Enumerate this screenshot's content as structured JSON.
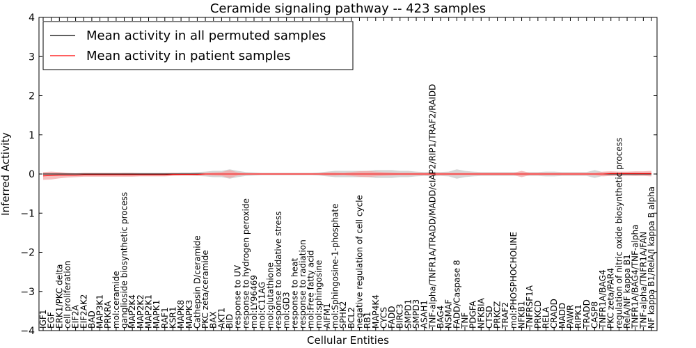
{
  "chart_data": {
    "type": "line",
    "title": "Ceramide signaling pathway -- 423 samples",
    "xlabel": "Cellular Entities",
    "ylabel": "Inferred Activity",
    "ylim": [
      -4,
      4
    ],
    "yticks": [
      -4,
      -3,
      -2,
      -1,
      0,
      1,
      2,
      3,
      4
    ],
    "grid": false,
    "legend_position": "top-left",
    "categories": [
      "IGF1",
      "EGF",
      "ERK1/PKC delta",
      "cell proliferation",
      "EIF2A",
      "EIF2AK2",
      "BAD",
      "MAP3K1",
      "PRKRA",
      "mol:ceramide",
      "ganglioside biosynthetic process",
      "MAP2K4",
      "MAP2K2",
      "MAP2K1",
      "MAPK1",
      "RAF1",
      "KSR1",
      "MAPK8",
      "MAPK3",
      "Cathepsin D/ceramide",
      "PKC zeta/ceramide",
      "BAX",
      "AKT1",
      "BID",
      "response to UV",
      "response to hydrogen peroxide",
      "mol:LY96469",
      "mol:C11AG",
      "mol:glutathione",
      "response to oxidative stress",
      "mol:GD3",
      "response to heat",
      "response to radiation",
      "mol:Free fatty acid",
      "mol:sphingosine",
      "AIFM1",
      "mol:Sphingosine-1-phosphate",
      "SPHK2",
      "BCL2",
      "negative regulation of cell cycle",
      "RB1",
      "MAP4K4",
      "CYCS",
      "FADD",
      "BIRC3",
      "SMPD1",
      "SMPD3",
      "ASAH1",
      "TNF-alpha/TNFR1A/TRADD/MADD/cIAP2/RIP1/TRAF2/RAIDD",
      "BAG4",
      "NSMAF",
      "FADD/Caspase 8",
      "TNF",
      "PDGFA",
      "NFKBIA",
      "CTSD",
      "PRKCZ",
      "TRAF2",
      "mol:PHOSPHOCHOLINE",
      "NFKB1",
      "TNFRSF1A",
      "PRKCD",
      "RELA",
      "CRADD",
      "MADD",
      "PAWR",
      "RIPK1",
      "TRADD",
      "CASP8",
      "TNFR1A/BAG4",
      "PKC zeta/PAR4",
      "regulation of nitric oxide biosynthetic process",
      "RelA/NF kappa B1",
      "TNFR1A/BAG4/TNF-alpha",
      "TNF-alpha/TNFR1A/FAN",
      "NF kappa B1/RelA/I kappa B alpha"
    ],
    "series": [
      {
        "name": "Mean activity in all permuted samples",
        "color": "#000000",
        "band_color": "#c8c8c8",
        "values": [
          0,
          0,
          0,
          0,
          0,
          0,
          0,
          0,
          0,
          0,
          0,
          0,
          0,
          0,
          0,
          0,
          0,
          0,
          0,
          0,
          0,
          0,
          0,
          0,
          0,
          0,
          0,
          0,
          0,
          0,
          0,
          0,
          0,
          0,
          0,
          0,
          0,
          0,
          0,
          0,
          0,
          0,
          0,
          0,
          0,
          0,
          0,
          0,
          0,
          0,
          0,
          0,
          0,
          0,
          0,
          0,
          0,
          0,
          0,
          0,
          0,
          0,
          0,
          0,
          0,
          0,
          0,
          0,
          0,
          0,
          0,
          0,
          0,
          0,
          0,
          0
        ],
        "band": [
          0.02,
          0.02,
          0.02,
          0.02,
          0.02,
          0.02,
          0.02,
          0.02,
          0.02,
          0.02,
          0.03,
          0.03,
          0.03,
          0.03,
          0.03,
          0.03,
          0.03,
          0.04,
          0.04,
          0.05,
          0.06,
          0.08,
          0.08,
          0.12,
          0.08,
          0.05,
          0.04,
          0.03,
          0.03,
          0.03,
          0.03,
          0.03,
          0.03,
          0.03,
          0.04,
          0.06,
          0.08,
          0.08,
          0.08,
          0.08,
          0.08,
          0.1,
          0.1,
          0.1,
          0.08,
          0.08,
          0.06,
          0.05,
          0.06,
          0.05,
          0.06,
          0.12,
          0.08,
          0.06,
          0.05,
          0.05,
          0.05,
          0.05,
          0.05,
          0.05,
          0.05,
          0.05,
          0.06,
          0.06,
          0.05,
          0.05,
          0.05,
          0.05,
          0.1,
          0.05,
          0.05,
          0.05,
          0.05,
          0.05,
          0.04,
          0.04
        ]
      },
      {
        "name": "Mean activity in patient samples",
        "color": "#ff0000",
        "band_color": "#f4a3a3",
        "values": [
          -0.05,
          -0.04,
          -0.03,
          -0.03,
          -0.03,
          -0.02,
          -0.02,
          -0.02,
          -0.02,
          -0.02,
          -0.02,
          -0.02,
          -0.02,
          -0.02,
          -0.02,
          -0.02,
          -0.01,
          -0.01,
          -0.01,
          -0.01,
          0,
          0,
          0,
          0,
          0,
          0,
          0,
          0,
          0,
          0,
          0,
          0,
          0,
          0,
          0,
          0,
          0,
          0,
          0,
          0,
          0,
          0,
          0,
          0,
          0,
          0,
          0,
          0,
          0,
          0,
          0,
          0,
          0,
          0,
          0,
          0,
          0,
          0,
          0,
          0,
          0,
          0,
          0,
          0,
          0,
          0,
          0,
          0,
          0,
          0,
          0.01,
          0.01,
          0.01,
          0.01,
          0.01,
          0.01
        ],
        "band": [
          0.1,
          0.1,
          0.08,
          0.06,
          0.05,
          0.05,
          0.05,
          0.05,
          0.05,
          0.05,
          0.05,
          0.05,
          0.04,
          0.04,
          0.04,
          0.04,
          0.04,
          0.03,
          0.03,
          0.03,
          0.03,
          0.04,
          0.05,
          0.1,
          0.04,
          0.02,
          0.02,
          0.02,
          0.02,
          0.02,
          0.02,
          0.02,
          0.02,
          0.02,
          0.02,
          0.04,
          0.04,
          0.03,
          0.05,
          0.07,
          0.08,
          0.06,
          0.05,
          0.04,
          0.03,
          0.03,
          0.03,
          0.03,
          0.03,
          0.03,
          0.03,
          0.03,
          0.03,
          0.03,
          0.03,
          0.03,
          0.03,
          0.03,
          0.03,
          0.08,
          0.03,
          0.03,
          0.03,
          0.03,
          0.03,
          0.03,
          0.03,
          0.03,
          0.03,
          0.06,
          0.06,
          0.05,
          0.05,
          0.06,
          0.06,
          0.07
        ]
      }
    ]
  }
}
